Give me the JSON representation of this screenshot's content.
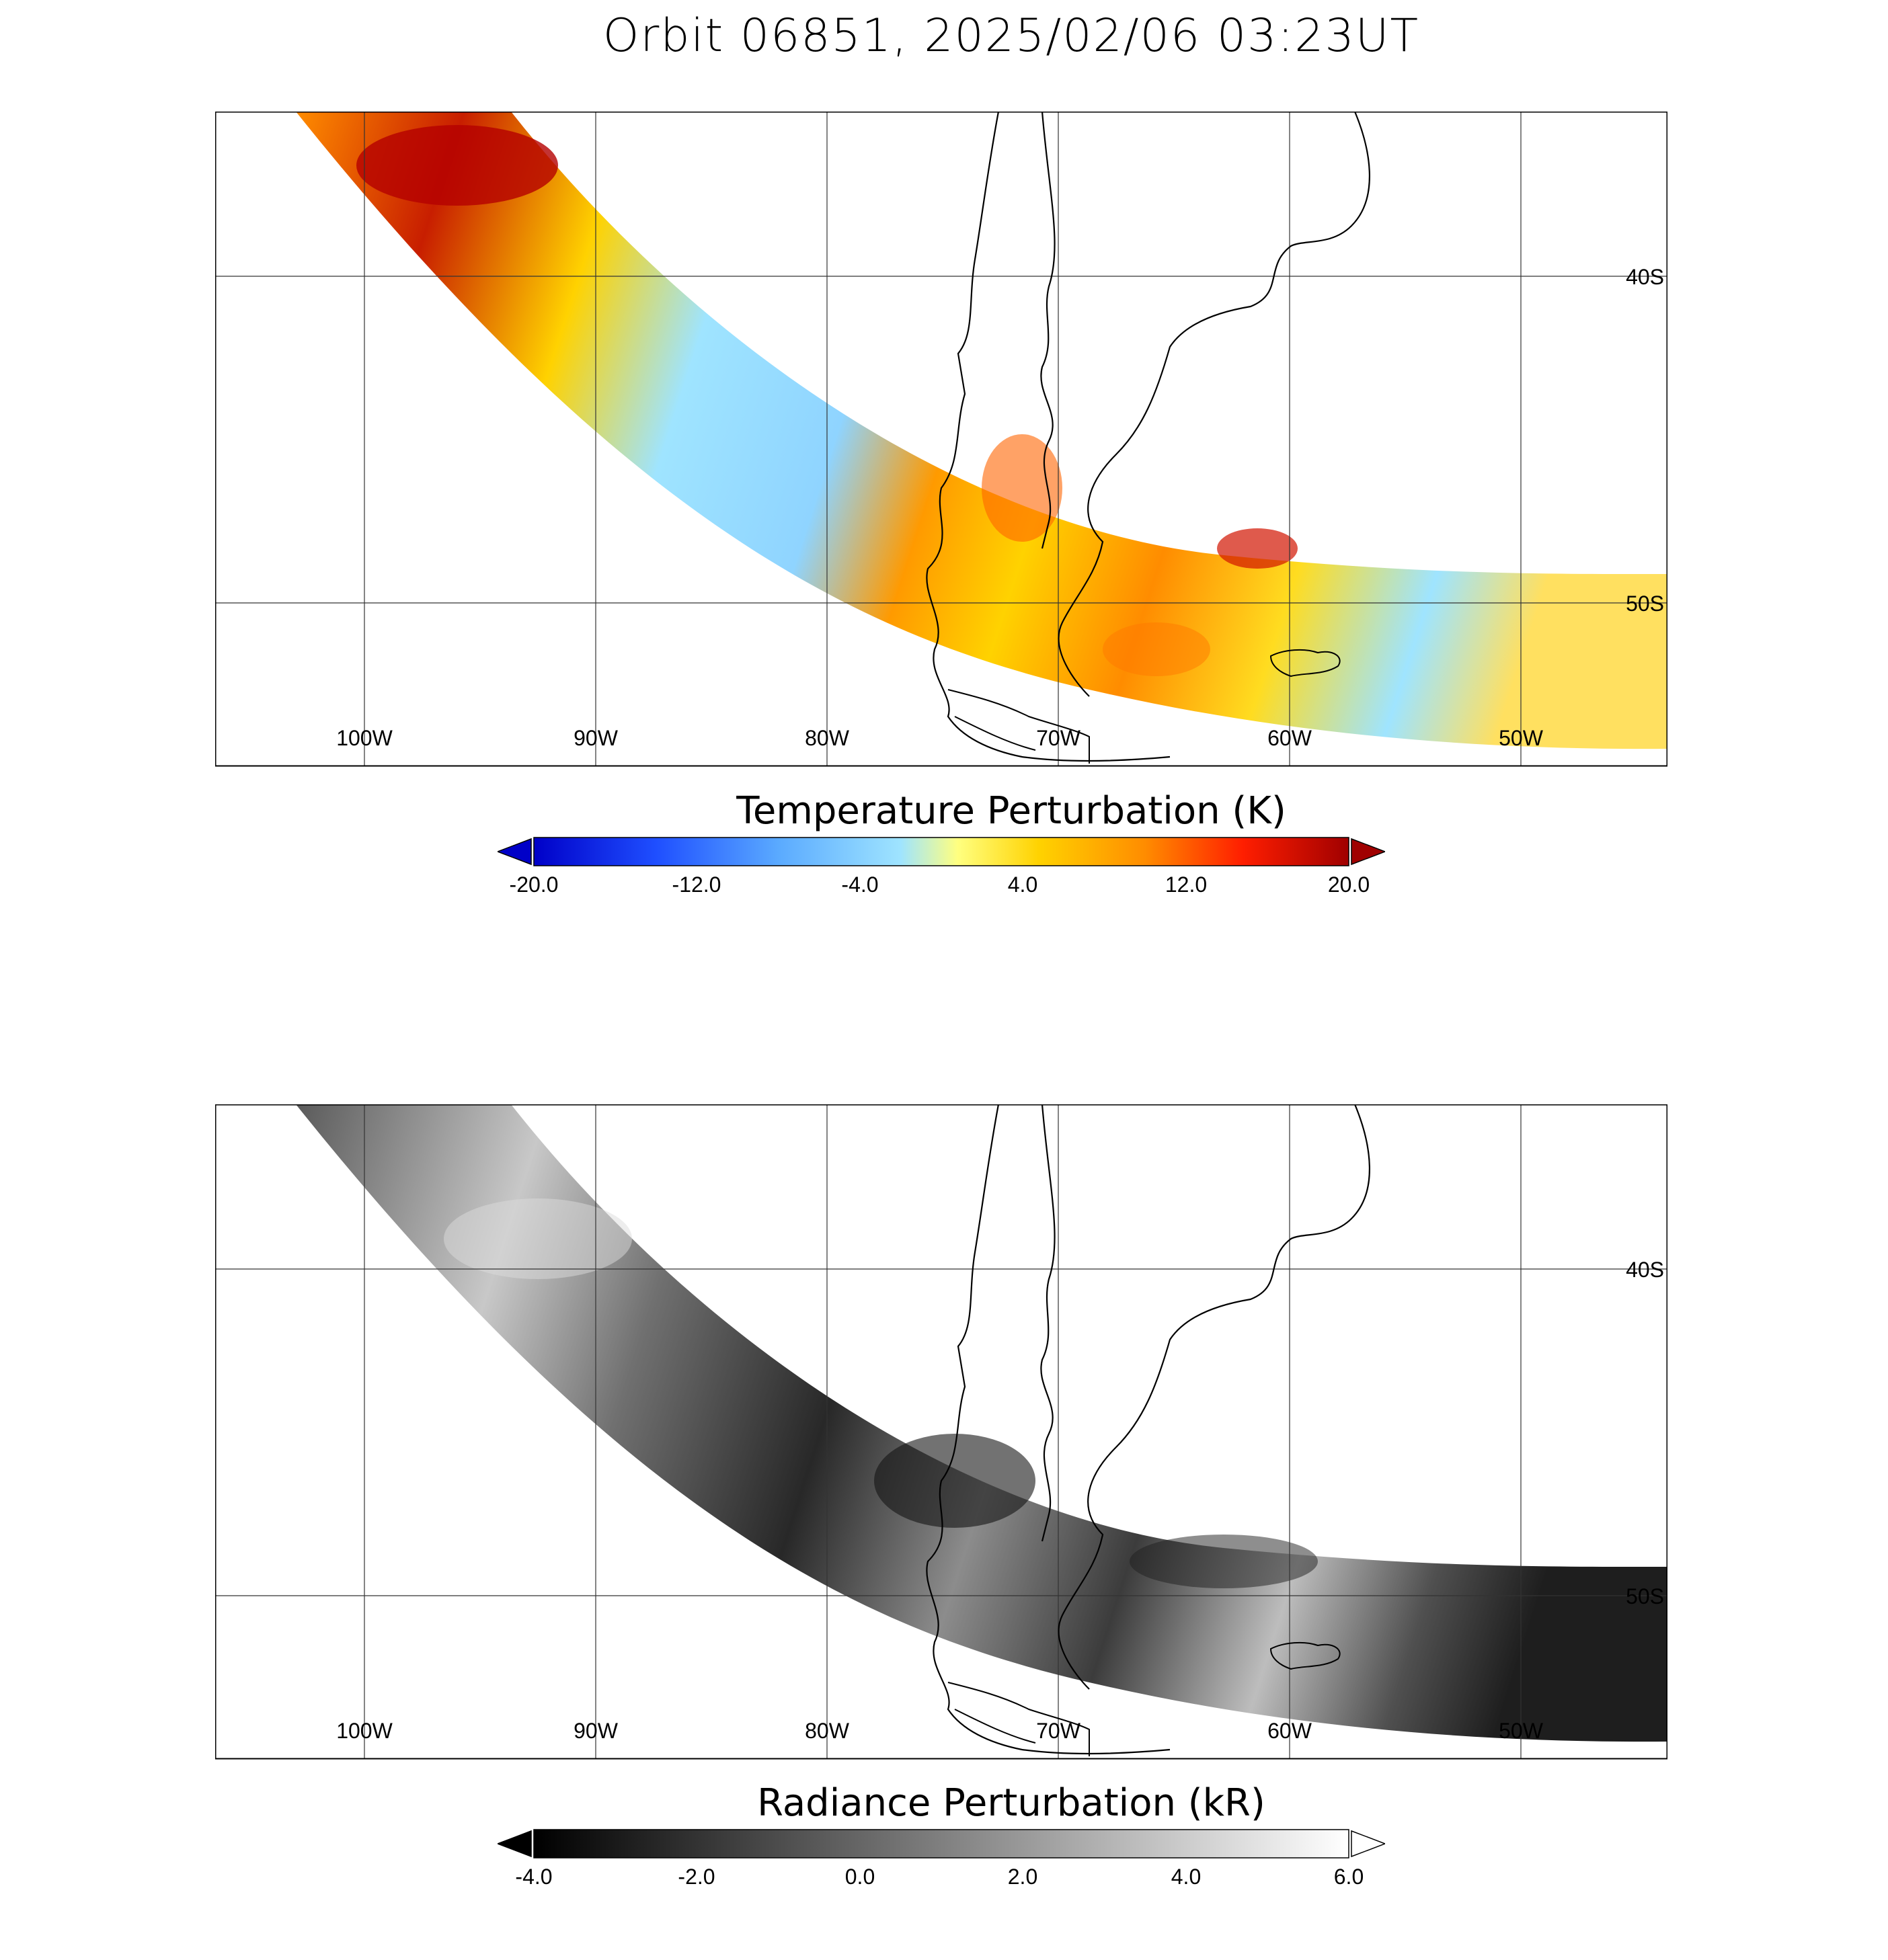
{
  "title": "Orbit 06851, 2025/02/06 03:23UT",
  "lon_labels": [
    "100W",
    "90W",
    "80W",
    "70W",
    "60W",
    "50W"
  ],
  "lat_labels": [
    "40S",
    "50S"
  ],
  "top_panel": {
    "colorbar": {
      "title": "Temperature Perturbation (K)",
      "ticks": [
        "-20.0",
        "-12.0",
        "-4.0",
        "4.0",
        "12.0",
        "20.0"
      ],
      "palette": [
        "#0000c8",
        "#1f4fff",
        "#5aaaff",
        "#9fe4ff",
        "#ffff80",
        "#ffd200",
        "#ff8c00",
        "#ff1e00",
        "#a00000"
      ]
    }
  },
  "bottom_panel": {
    "colorbar": {
      "title": "Radiance Perturbation (kR)",
      "ticks": [
        "-4.0",
        "-2.0",
        "0.0",
        "2.0",
        "4.0",
        "6.0"
      ],
      "palette": [
        "#000000",
        "#ffffff"
      ]
    }
  }
}
